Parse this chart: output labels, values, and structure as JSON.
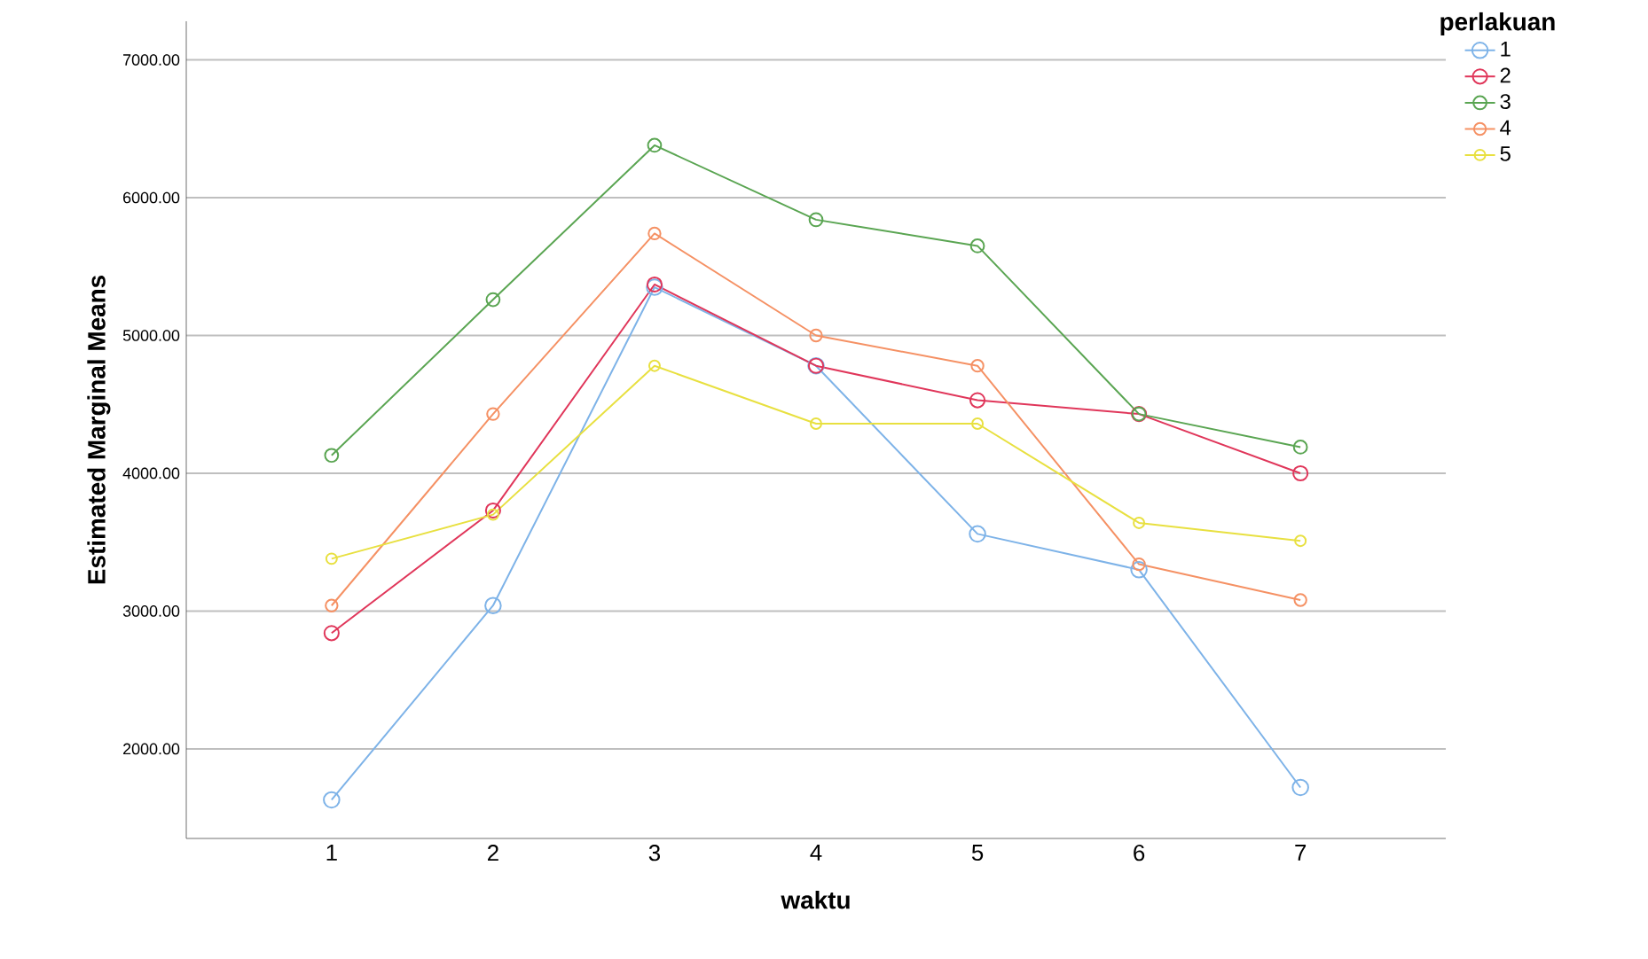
{
  "chart_data": {
    "type": "line",
    "xlabel": "waktu",
    "ylabel": "Estimated Marginal Means",
    "legend_title": "perlakuan",
    "legend": "top right",
    "marker": "circle",
    "line_style": "solid",
    "grid": "y",
    "x": [
      1,
      2,
      3,
      4,
      5,
      6,
      7
    ],
    "xlim": [
      0.1,
      7.9
    ],
    "xticks": [
      1,
      2,
      3,
      4,
      5,
      6,
      7
    ],
    "ylim": [
      1350,
      7280
    ],
    "yticks": [
      {
        "value": 2000,
        "label": "2000.00"
      },
      {
        "value": 3000,
        "label": "3000.00"
      },
      {
        "value": 4000,
        "label": "4000.00"
      },
      {
        "value": 5000,
        "label": "5000.00"
      },
      {
        "value": 6000,
        "label": "6000.00"
      },
      {
        "value": 7000,
        "label": "7000.00"
      }
    ],
    "series": [
      {
        "name": "1",
        "color": "#7eb3e8",
        "values": [
          1630,
          3040,
          5350,
          4780,
          3560,
          3300,
          1720
        ]
      },
      {
        "name": "2",
        "color": "#e0365a",
        "values": [
          2840,
          3730,
          5370,
          4780,
          4530,
          4430,
          4000
        ]
      },
      {
        "name": "3",
        "color": "#5aa552",
        "values": [
          4130,
          5260,
          6380,
          5840,
          5650,
          4430,
          4190
        ]
      },
      {
        "name": "4",
        "color": "#f59164",
        "values": [
          3040,
          4430,
          5740,
          5000,
          4780,
          3340,
          3080
        ]
      },
      {
        "name": "5",
        "color": "#e8e040",
        "values": [
          3380,
          3700,
          4780,
          4360,
          4360,
          3640,
          3510
        ]
      }
    ]
  }
}
